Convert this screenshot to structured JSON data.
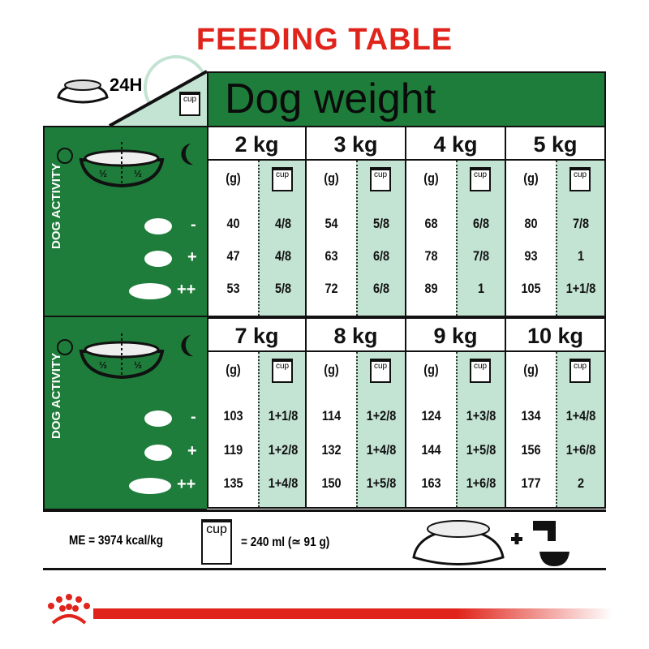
{
  "title": "FEEDING TABLE",
  "duration": "24H",
  "header": "Dog weight",
  "cup_label": "cup",
  "activity_label": "DOG ACTIVITY",
  "half": "½",
  "activity_levels": [
    "-",
    "+",
    "++"
  ],
  "col_headers": {
    "grams": "(g)"
  },
  "blocks": [
    {
      "weights": [
        {
          "label": "2 kg",
          "g": [
            "40",
            "47",
            "53"
          ],
          "cup": [
            "4/8",
            "4/8",
            "5/8"
          ]
        },
        {
          "label": "3 kg",
          "g": [
            "54",
            "63",
            "72"
          ],
          "cup": [
            "5/8",
            "6/8",
            "6/8"
          ]
        },
        {
          "label": "4 kg",
          "g": [
            "68",
            "78",
            "89"
          ],
          "cup": [
            "6/8",
            "7/8",
            "1"
          ]
        },
        {
          "label": "5 kg",
          "g": [
            "80",
            "93",
            "105"
          ],
          "cup": [
            "7/8",
            "1",
            "1+1/8"
          ]
        }
      ]
    },
    {
      "weights": [
        {
          "label": "7 kg",
          "g": [
            "103",
            "119",
            "135"
          ],
          "cup": [
            "1+1/8",
            "1+2/8",
            "1+4/8"
          ]
        },
        {
          "label": "8 kg",
          "g": [
            "114",
            "132",
            "150"
          ],
          "cup": [
            "1+2/8",
            "1+4/8",
            "1+5/8"
          ]
        },
        {
          "label": "9 kg",
          "g": [
            "124",
            "144",
            "163"
          ],
          "cup": [
            "1+3/8",
            "1+5/8",
            "1+6/8"
          ]
        },
        {
          "label": "10 kg",
          "g": [
            "134",
            "156",
            "177"
          ],
          "cup": [
            "1+4/8",
            "1+6/8",
            "2"
          ]
        }
      ]
    }
  ],
  "footer": {
    "energy": "ME = 3974 kcal/kg",
    "cup_equiv": "= 240 ml (≃ 91 g)",
    "plus": "+"
  },
  "colors": {
    "green": "#1e7d3a",
    "light_green": "#c3e3d3",
    "red": "#e0241b"
  }
}
